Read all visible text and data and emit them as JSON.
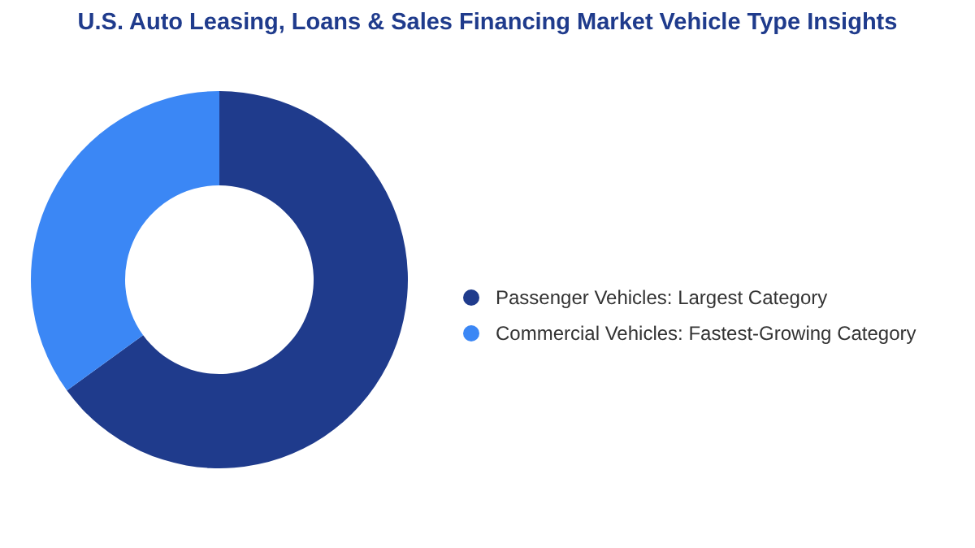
{
  "chart_data": {
    "type": "donut",
    "title": "U.S. Auto Leasing, Loans & Sales Financing Market Vehicle Type Insights",
    "categories": [
      "Passenger Vehicles: Largest Category",
      "Commercial Vehicles: Fastest-Growing Category"
    ],
    "values": [
      65,
      35
    ],
    "colors": [
      "#1f3b8c",
      "#3b87f5"
    ],
    "legend": "right"
  }
}
